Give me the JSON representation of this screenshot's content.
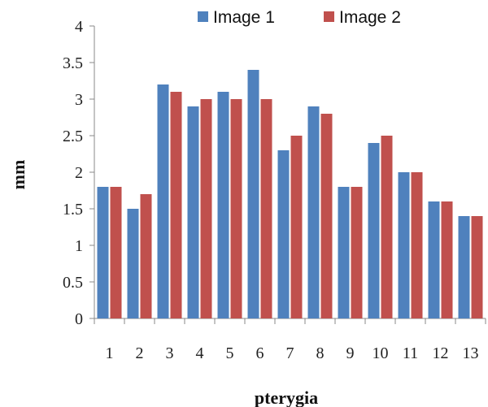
{
  "chart_data": {
    "type": "bar",
    "title": "",
    "xlabel": "pterygia",
    "ylabel": "mm",
    "categories": [
      "1",
      "2",
      "3",
      "4",
      "5",
      "6",
      "7",
      "8",
      "9",
      "10",
      "11",
      "12",
      "13"
    ],
    "series": [
      {
        "name": "Image 1",
        "color": "#4F81BD",
        "values": [
          1.8,
          1.5,
          3.2,
          2.9,
          3.1,
          3.4,
          2.3,
          2.9,
          1.8,
          2.4,
          2.0,
          1.6,
          1.4
        ]
      },
      {
        "name": "Image 2",
        "color": "#C0504D",
        "values": [
          1.8,
          1.7,
          3.1,
          3.0,
          3.0,
          3.0,
          2.5,
          2.8,
          1.8,
          2.5,
          2.0,
          1.6,
          1.4
        ]
      }
    ],
    "ylim": [
      0,
      4
    ],
    "yticks": [
      "0",
      "0.5",
      "1",
      "1.5",
      "2",
      "2.5",
      "3",
      "3.5",
      "4"
    ],
    "grid": false,
    "legend": "top"
  }
}
